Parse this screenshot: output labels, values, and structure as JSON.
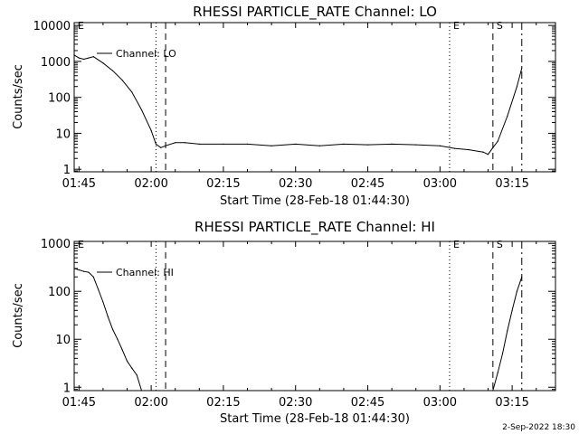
{
  "footer_timestamp": "2-Sep-2022 18:30",
  "colors": {
    "background": "#ffffff",
    "ink": "#000000"
  },
  "chart_data": [
    {
      "type": "line",
      "title": "RHESSI PARTICLE_RATE Channel: LO",
      "xlabel": "Start Time (28-Feb-18 01:44:30)",
      "ylabel": "Counts/sec",
      "y_scale": "log",
      "xlim": [
        "01:44",
        "03:24"
      ],
      "ylim": [
        0.85,
        12000
      ],
      "x_ticks": [
        "01:45",
        "02:00",
        "02:15",
        "02:30",
        "02:45",
        "03:00",
        "03:15"
      ],
      "y_ticks": [
        "1",
        "10",
        "100",
        "1000",
        "10000"
      ],
      "grid": false,
      "legend": "top-left",
      "series_label": "Channel: LO",
      "event_lines": [
        {
          "time": "01:44",
          "style": "dotted",
          "label": "E"
        },
        {
          "time": "02:01",
          "style": "dotted",
          "label": ""
        },
        {
          "time": "02:03",
          "style": "dashed",
          "label": ""
        },
        {
          "time": "03:02",
          "style": "dotted",
          "label": "E"
        },
        {
          "time": "03:11",
          "style": "dashed",
          "label": "S"
        },
        {
          "time": "03:17",
          "style": "dash-dot",
          "label": ""
        }
      ],
      "series": [
        {
          "name": "Channel: LO",
          "x": [
            "01:44",
            "01:45",
            "01:46",
            "01:47",
            "01:48",
            "01:50",
            "01:52",
            "01:54",
            "01:56",
            "01:58",
            "02:00",
            "02:01",
            "02:02",
            "02:03",
            "02:05",
            "02:07",
            "02:10",
            "02:15",
            "02:20",
            "02:25",
            "02:30",
            "02:35",
            "02:40",
            "02:45",
            "02:50",
            "02:55",
            "03:00",
            "03:03",
            "03:06",
            "03:09",
            "03:10",
            "03:11",
            "03:12",
            "03:14",
            "03:16",
            "03:17"
          ],
          "y": [
            1500,
            1250,
            1150,
            1250,
            1350,
            900,
            550,
            300,
            140,
            45,
            12,
            5,
            4,
            4.5,
            5.5,
            5.5,
            5,
            5,
            5,
            4.5,
            5,
            4.5,
            5,
            4.8,
            5,
            4.8,
            4.5,
            3.8,
            3.5,
            3,
            2.6,
            4,
            6,
            30,
            200,
            650
          ]
        }
      ]
    },
    {
      "type": "line",
      "title": "RHESSI PARTICLE_RATE Channel: HI",
      "xlabel": "Start Time (28-Feb-18 01:44:30)",
      "ylabel": "Counts/sec",
      "y_scale": "log",
      "xlim": [
        "01:44",
        "03:24"
      ],
      "ylim": [
        0.85,
        1100
      ],
      "x_ticks": [
        "01:45",
        "02:00",
        "02:15",
        "02:30",
        "02:45",
        "03:00",
        "03:15"
      ],
      "y_ticks": [
        "1",
        "10",
        "100",
        "1000"
      ],
      "grid": false,
      "legend": "top-left",
      "series_label": "Channel: HI",
      "event_lines": [
        {
          "time": "01:44",
          "style": "dotted",
          "label": "E"
        },
        {
          "time": "02:01",
          "style": "dotted",
          "label": ""
        },
        {
          "time": "02:03",
          "style": "dashed",
          "label": ""
        },
        {
          "time": "03:02",
          "style": "dotted",
          "label": "E"
        },
        {
          "time": "03:11",
          "style": "dashed",
          "label": "S"
        },
        {
          "time": "03:17",
          "style": "dash-dot",
          "label": ""
        }
      ],
      "series": [
        {
          "name": "Channel: HI",
          "x": [
            "01:44",
            "01:45",
            "01:46",
            "01:47",
            "01:48",
            "01:49",
            "01:50",
            "01:51",
            "01:52",
            "01:53",
            "01:54",
            "01:55",
            "01:56",
            "01:57",
            "01:58",
            "03:11",
            "03:12",
            "03:13",
            "03:14",
            "03:15",
            "03:16",
            "03:17"
          ],
          "y": [
            300,
            280,
            260,
            250,
            200,
            110,
            60,
            30,
            16,
            10,
            6,
            3.5,
            2.5,
            1.8,
            0.85,
            0.85,
            2,
            5,
            15,
            40,
            100,
            200
          ]
        }
      ]
    }
  ]
}
